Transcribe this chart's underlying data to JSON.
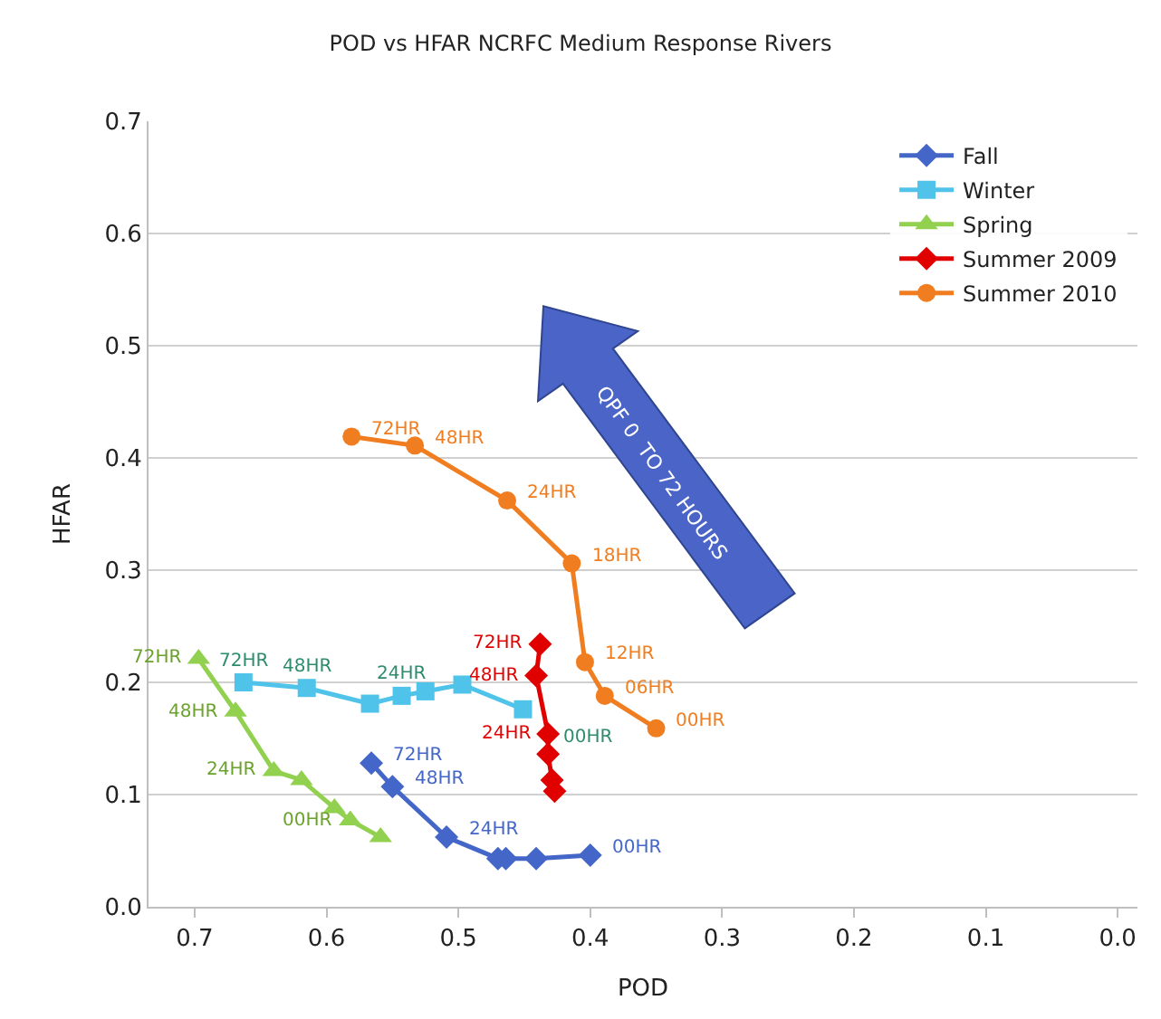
{
  "chart_data": {
    "type": "line",
    "title": "POD vs HFAR NCRFC Medium Response Rivers",
    "xlabel": "POD",
    "ylabel": "HFAR",
    "xlim": [
      0.735,
      -0.015
    ],
    "xticks": [
      0.7,
      0.6,
      0.5,
      0.4,
      0.3,
      0.2,
      0.1,
      {
        "value": 0.0,
        "label": "0.0"
      }
    ],
    "ylim": [
      0,
      0.7
    ],
    "yticks": [
      {
        "value": 0.0,
        "label": "0.0"
      },
      0.1,
      0.2,
      0.3,
      0.4,
      0.5,
      0.6,
      0.7
    ],
    "grid": "y",
    "legend": "top right",
    "annotations": [
      "QPF 0  TO 72 HOURS",
      {
        "text": "72HR",
        "x": 0.566,
        "y": 0.128
      },
      {
        "text": "48HR",
        "x": 0.55,
        "y": 0.107
      },
      {
        "text": "24HR",
        "x": 0.509,
        "y": 0.062
      },
      {
        "text": "00HR",
        "x": 0.4,
        "y": 0.046
      },
      {
        "text": "72HR",
        "x": 0.663,
        "y": 0.2
      },
      {
        "text": "48HR",
        "x": 0.615,
        "y": 0.195
      },
      {
        "text": "24HR",
        "x": 0.543,
        "y": 0.188
      },
      {
        "text": "00HR",
        "x": 0.451,
        "y": 0.176
      },
      {
        "text": "72HR",
        "x": 0.697,
        "y": 0.221
      },
      {
        "text": "48HR",
        "x": 0.669,
        "y": 0.174
      },
      {
        "text": "24HR",
        "x": 0.64,
        "y": 0.121
      },
      {
        "text": "00HR",
        "x": 0.582,
        "y": 0.077
      },
      {
        "text": "72HR",
        "x": 0.438,
        "y": 0.234
      },
      {
        "text": "48HR",
        "x": 0.441,
        "y": 0.206
      },
      {
        "text": "24HR",
        "x": 0.432,
        "y": 0.154
      },
      {
        "text": "72HR",
        "x": 0.581,
        "y": 0.419
      },
      {
        "text": "48HR",
        "x": 0.533,
        "y": 0.411
      },
      {
        "text": "24HR",
        "x": 0.463,
        "y": 0.362
      },
      {
        "text": "18HR",
        "x": 0.414,
        "y": 0.306
      },
      {
        "text": "12HR",
        "x": 0.404,
        "y": 0.218
      },
      {
        "text": "06HR",
        "x": 0.389,
        "y": 0.188
      },
      {
        "text": "00HR",
        "x": 0.35,
        "y": 0.159
      }
    ],
    "series": [
      {
        "name": "Fall",
        "color": "#4466c8",
        "marker": "diamond",
        "x": [
          0.566,
          0.55,
          0.509,
          0.47,
          0.464,
          0.441,
          0.4
        ],
        "values": [
          0.128,
          0.107,
          0.062,
          0.043,
          0.043,
          0.043,
          0.046
        ]
      },
      {
        "name": "Winter",
        "color": "#4fc3ea",
        "marker": "square",
        "x": [
          0.663,
          0.615,
          0.567,
          0.543,
          0.525,
          0.497,
          0.451
        ],
        "values": [
          0.2,
          0.195,
          0.181,
          0.188,
          0.192,
          0.198,
          0.176
        ]
      },
      {
        "name": "Spring",
        "color": "#92d050",
        "marker": "triangle",
        "x": [
          0.697,
          0.669,
          0.64,
          0.619,
          0.594,
          0.582,
          0.559
        ],
        "values": [
          0.221,
          0.174,
          0.121,
          0.113,
          0.088,
          0.077,
          0.062
        ]
      },
      {
        "name": "Summer 2009",
        "color": "#e00000",
        "marker": "diamond",
        "x": [
          0.438,
          0.441,
          0.432,
          0.432,
          0.429,
          0.427
        ],
        "values": [
          0.234,
          0.206,
          0.154,
          0.136,
          0.113,
          0.103
        ]
      },
      {
        "name": "Summer 2010",
        "color": "#f07d1f",
        "marker": "circle",
        "x": [
          0.581,
          0.533,
          0.463,
          0.414,
          0.404,
          0.389,
          0.35
        ],
        "values": [
          0.419,
          0.411,
          0.362,
          0.306,
          0.218,
          0.188,
          0.159
        ]
      }
    ]
  }
}
